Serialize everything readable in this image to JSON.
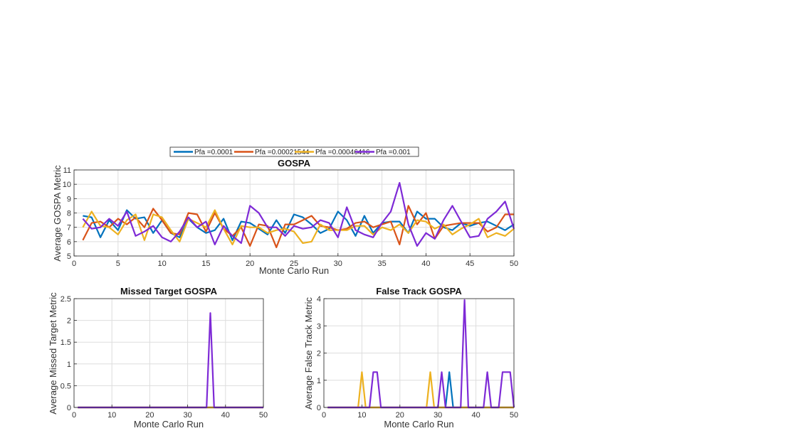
{
  "chart_data": [
    {
      "type": "line",
      "title": "GOSPA",
      "xlabel": "Monte Carlo Run",
      "ylabel": "Average GOSPA Metric",
      "xlim": [
        0,
        50
      ],
      "ylim": [
        5,
        11
      ],
      "xticks": [
        0,
        5,
        10,
        15,
        20,
        25,
        30,
        35,
        40,
        45,
        50
      ],
      "yticks": [
        5,
        6,
        7,
        8,
        9,
        10,
        11
      ],
      "grid": true,
      "legend": "top, horizontal, above plot",
      "x": [
        1,
        2,
        3,
        4,
        5,
        6,
        7,
        8,
        9,
        10,
        11,
        12,
        13,
        14,
        15,
        16,
        17,
        18,
        19,
        20,
        21,
        22,
        23,
        24,
        25,
        26,
        27,
        28,
        29,
        30,
        31,
        32,
        33,
        34,
        35,
        36,
        37,
        38,
        39,
        40,
        41,
        42,
        43,
        44,
        45,
        46,
        47,
        48,
        49,
        50
      ],
      "series": [
        {
          "name": "Pfa =0.0001",
          "color": "#0072BD",
          "values": [
            7.8,
            7.7,
            6.3,
            7.5,
            6.8,
            8.2,
            7.6,
            7.7,
            6.6,
            7.5,
            6.6,
            6.3,
            7.6,
            7.0,
            6.6,
            6.8,
            7.6,
            6.1,
            7.4,
            7.3,
            6.9,
            6.5,
            7.5,
            6.6,
            7.9,
            7.7,
            7.2,
            6.6,
            6.9,
            8.1,
            7.5,
            6.4,
            7.8,
            6.6,
            7.3,
            7.4,
            7.4,
            6.6,
            8.1,
            7.6,
            7.6,
            7.0,
            6.8,
            7.3,
            7.1,
            7.3,
            7.4,
            7.1,
            6.8,
            7.2
          ]
        },
        {
          "name": "Pfa =0.00021544",
          "color": "#D95319",
          "values": [
            6.1,
            7.3,
            7.4,
            7.0,
            7.6,
            7.2,
            7.7,
            7.0,
            8.3,
            7.5,
            6.6,
            6.5,
            8.0,
            7.9,
            6.7,
            8.0,
            6.9,
            6.4,
            7.0,
            5.7,
            7.2,
            7.1,
            5.6,
            7.2,
            7.2,
            7.5,
            7.8,
            7.1,
            7.0,
            6.8,
            6.9,
            7.3,
            7.4,
            7.0,
            7.2,
            7.4,
            5.8,
            8.5,
            7.2,
            8.0,
            6.2,
            7.1,
            7.2,
            7.3,
            7.3,
            7.3,
            6.7,
            7.0,
            7.9,
            7.9
          ]
        },
        {
          "name": "Pfa =0.00046416",
          "color": "#EDB120",
          "values": [
            7.0,
            8.1,
            7.1,
            7.0,
            6.5,
            7.5,
            7.9,
            6.1,
            7.9,
            7.7,
            6.8,
            6.0,
            7.6,
            7.3,
            7.0,
            8.2,
            6.9,
            5.8,
            7.1,
            7.0,
            7.0,
            6.6,
            6.8,
            6.9,
            6.7,
            5.9,
            6.0,
            7.2,
            6.8,
            6.8,
            6.8,
            7.1,
            7.1,
            6.5,
            7.0,
            6.8,
            7.2,
            6.6,
            7.5,
            7.4,
            6.9,
            7.2,
            6.5,
            6.9,
            7.2,
            7.6,
            6.3,
            6.6,
            6.4,
            6.9
          ]
        },
        {
          "name": "Pfa =0.001",
          "color": "#7E2AD6",
          "values": [
            7.6,
            6.9,
            7.0,
            7.6,
            7.1,
            8.1,
            6.4,
            6.7,
            7.1,
            6.3,
            6.0,
            6.7,
            7.7,
            7.0,
            7.4,
            5.8,
            7.1,
            6.4,
            5.9,
            8.5,
            8.0,
            7.0,
            7.0,
            6.4,
            7.1,
            6.9,
            7.0,
            7.5,
            7.3,
            6.3,
            8.4,
            6.8,
            6.5,
            6.3,
            7.3,
            8.1,
            10.1,
            7.2,
            5.7,
            6.6,
            6.2,
            7.5,
            8.5,
            7.4,
            6.3,
            6.4,
            7.6,
            8.1,
            8.8,
            6.9
          ]
        }
      ]
    },
    {
      "type": "line",
      "title": "Missed Target GOSPA",
      "xlabel": "Monte Carlo Run",
      "ylabel": "Average Missed Target Metric",
      "xlim": [
        0,
        50
      ],
      "ylim": [
        0,
        2.5
      ],
      "xticks": [
        0,
        10,
        20,
        30,
        40,
        50
      ],
      "yticks": [
        0,
        0.5,
        1,
        1.5,
        2,
        2.5
      ],
      "grid": true,
      "x": [
        1,
        35,
        36,
        37,
        50
      ],
      "series": [
        {
          "name": "Pfa =0.0001",
          "color": "#0072BD",
          "values": [
            0,
            0,
            0,
            0,
            0
          ]
        },
        {
          "name": "Pfa =0.00021544",
          "color": "#D95319",
          "values": [
            0,
            0,
            0,
            0,
            0
          ]
        },
        {
          "name": "Pfa =0.00046416",
          "color": "#EDB120",
          "values": [
            0,
            0,
            0,
            0,
            0
          ]
        },
        {
          "name": "Pfa =0.001",
          "color": "#7E2AD6",
          "values": [
            0,
            0,
            2.17,
            0,
            0
          ]
        }
      ]
    },
    {
      "type": "line",
      "title": "False Track GOSPA",
      "xlabel": "Monte Carlo Run",
      "ylabel": "Average False Track Metric",
      "xlim": [
        0,
        50
      ],
      "ylim": [
        0,
        4
      ],
      "xticks": [
        0,
        10,
        20,
        30,
        40,
        50
      ],
      "yticks": [
        0,
        1,
        2,
        3,
        4
      ],
      "grid": true,
      "series": [
        {
          "name": "Pfa =0.0001",
          "color": "#0072BD",
          "x": [
            1,
            32,
            33,
            34,
            50
          ],
          "values": [
            0,
            0,
            1.3,
            0,
            0
          ]
        },
        {
          "name": "Pfa =0.00021544",
          "color": "#D95319",
          "x": [
            1,
            50
          ],
          "values": [
            0,
            0
          ]
        },
        {
          "name": "Pfa =0.00046416",
          "color": "#EDB120",
          "x": [
            1,
            9,
            10,
            11,
            27,
            28,
            29,
            50
          ],
          "values": [
            0,
            0,
            1.3,
            0,
            0,
            1.3,
            0,
            0
          ]
        },
        {
          "name": "Pfa =0.001",
          "color": "#7E2AD6",
          "x": [
            1,
            12,
            13,
            14,
            15,
            30,
            31,
            32,
            36,
            37,
            38,
            42,
            43,
            44,
            46,
            47,
            48,
            49,
            50
          ],
          "values": [
            0,
            0,
            1.3,
            1.3,
            0,
            0,
            1.3,
            0,
            0,
            3.95,
            0,
            0,
            1.3,
            0,
            0,
            1.3,
            1.3,
            1.3,
            0
          ]
        }
      ]
    }
  ]
}
